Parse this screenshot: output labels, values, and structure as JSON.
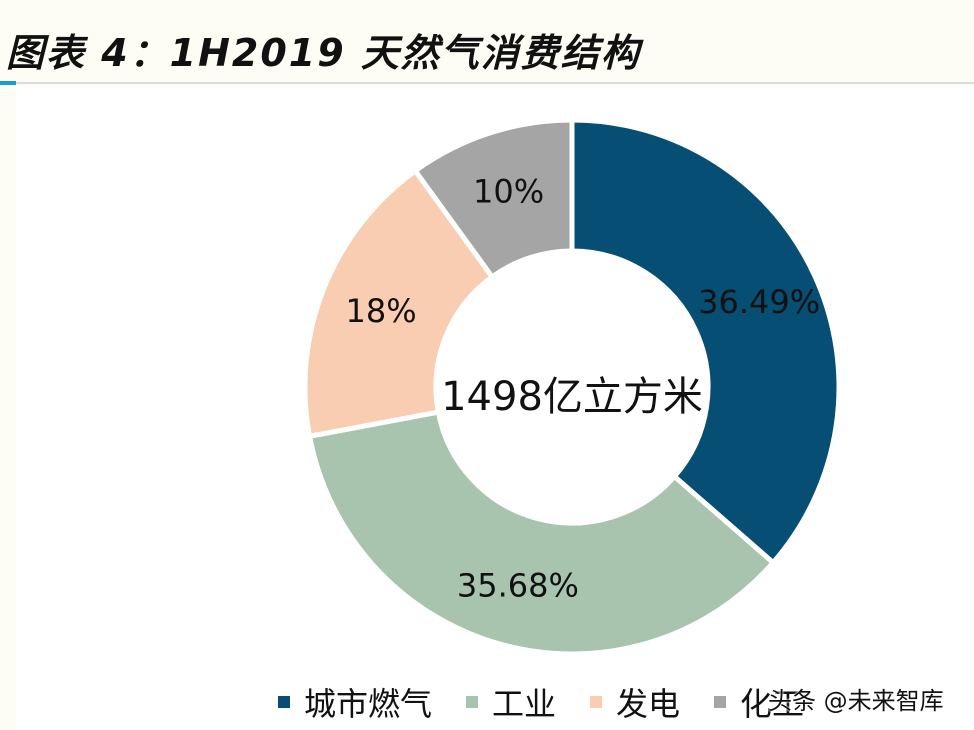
{
  "header": {
    "title": "图表 4：1H2019 天然气消费结构"
  },
  "colors": {
    "accent": "#1a9ad6"
  },
  "chart_data": {
    "type": "pie",
    "donut": true,
    "center_label": "1498亿立方米",
    "categories": [
      "城市燃气",
      "工业",
      "发电",
      "化工"
    ],
    "values": [
      36.49,
      35.68,
      18,
      10
    ],
    "value_labels": [
      "36.49%",
      "35.68%",
      "18%",
      "10%"
    ],
    "colors": [
      "#064e73",
      "#a9c4ae",
      "#f8cdb1",
      "#a5a5a5"
    ],
    "legend_position": "bottom"
  },
  "watermark": {
    "text": "头条 @未来智库"
  }
}
